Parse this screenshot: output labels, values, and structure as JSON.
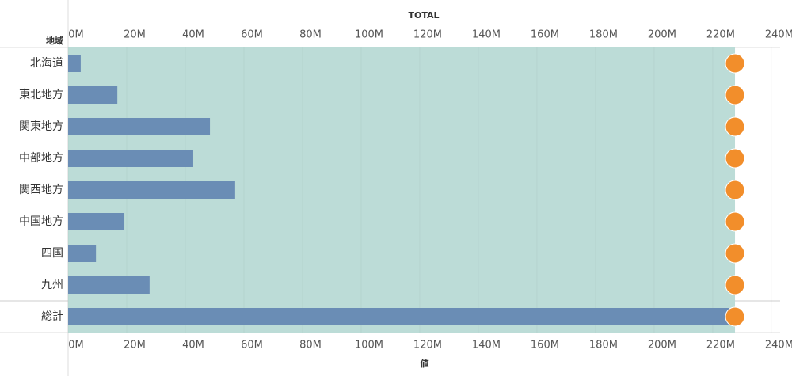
{
  "chart_data": {
    "type": "bar",
    "x_title_top": "TOTAL",
    "x_title_bottom": "値",
    "row_header": "地域",
    "categories": [
      "北海道",
      "東北地方",
      "関東地方",
      "中部地方",
      "関西地方",
      "中国地方",
      "四国",
      "九州"
    ],
    "values": [
      4.3,
      16.8,
      48.4,
      42.7,
      57,
      19.2,
      9.5,
      27.8
    ],
    "total_label": "総計",
    "total_value": 225.7,
    "reference_value": 227.6,
    "color": "#6a8db5",
    "band_color": "#bcdcd7",
    "marker_color": "#f28e2b",
    "xlim": [
      0,
      243
    ],
    "xticks": [
      {
        "value": 0,
        "label": "0M"
      },
      {
        "value": 20,
        "label": "20M"
      },
      {
        "value": 40,
        "label": "40M"
      },
      {
        "value": 60,
        "label": "60M"
      },
      {
        "value": 80,
        "label": "80M"
      },
      {
        "value": 100,
        "label": "100M"
      },
      {
        "value": 120,
        "label": "120M"
      },
      {
        "value": 140,
        "label": "140M"
      },
      {
        "value": 160,
        "label": "160M"
      },
      {
        "value": 180,
        "label": "180M"
      },
      {
        "value": 200,
        "label": "200M"
      },
      {
        "value": 220,
        "label": "220M"
      },
      {
        "value": 240,
        "label": "240M"
      }
    ],
    "grid": true
  }
}
